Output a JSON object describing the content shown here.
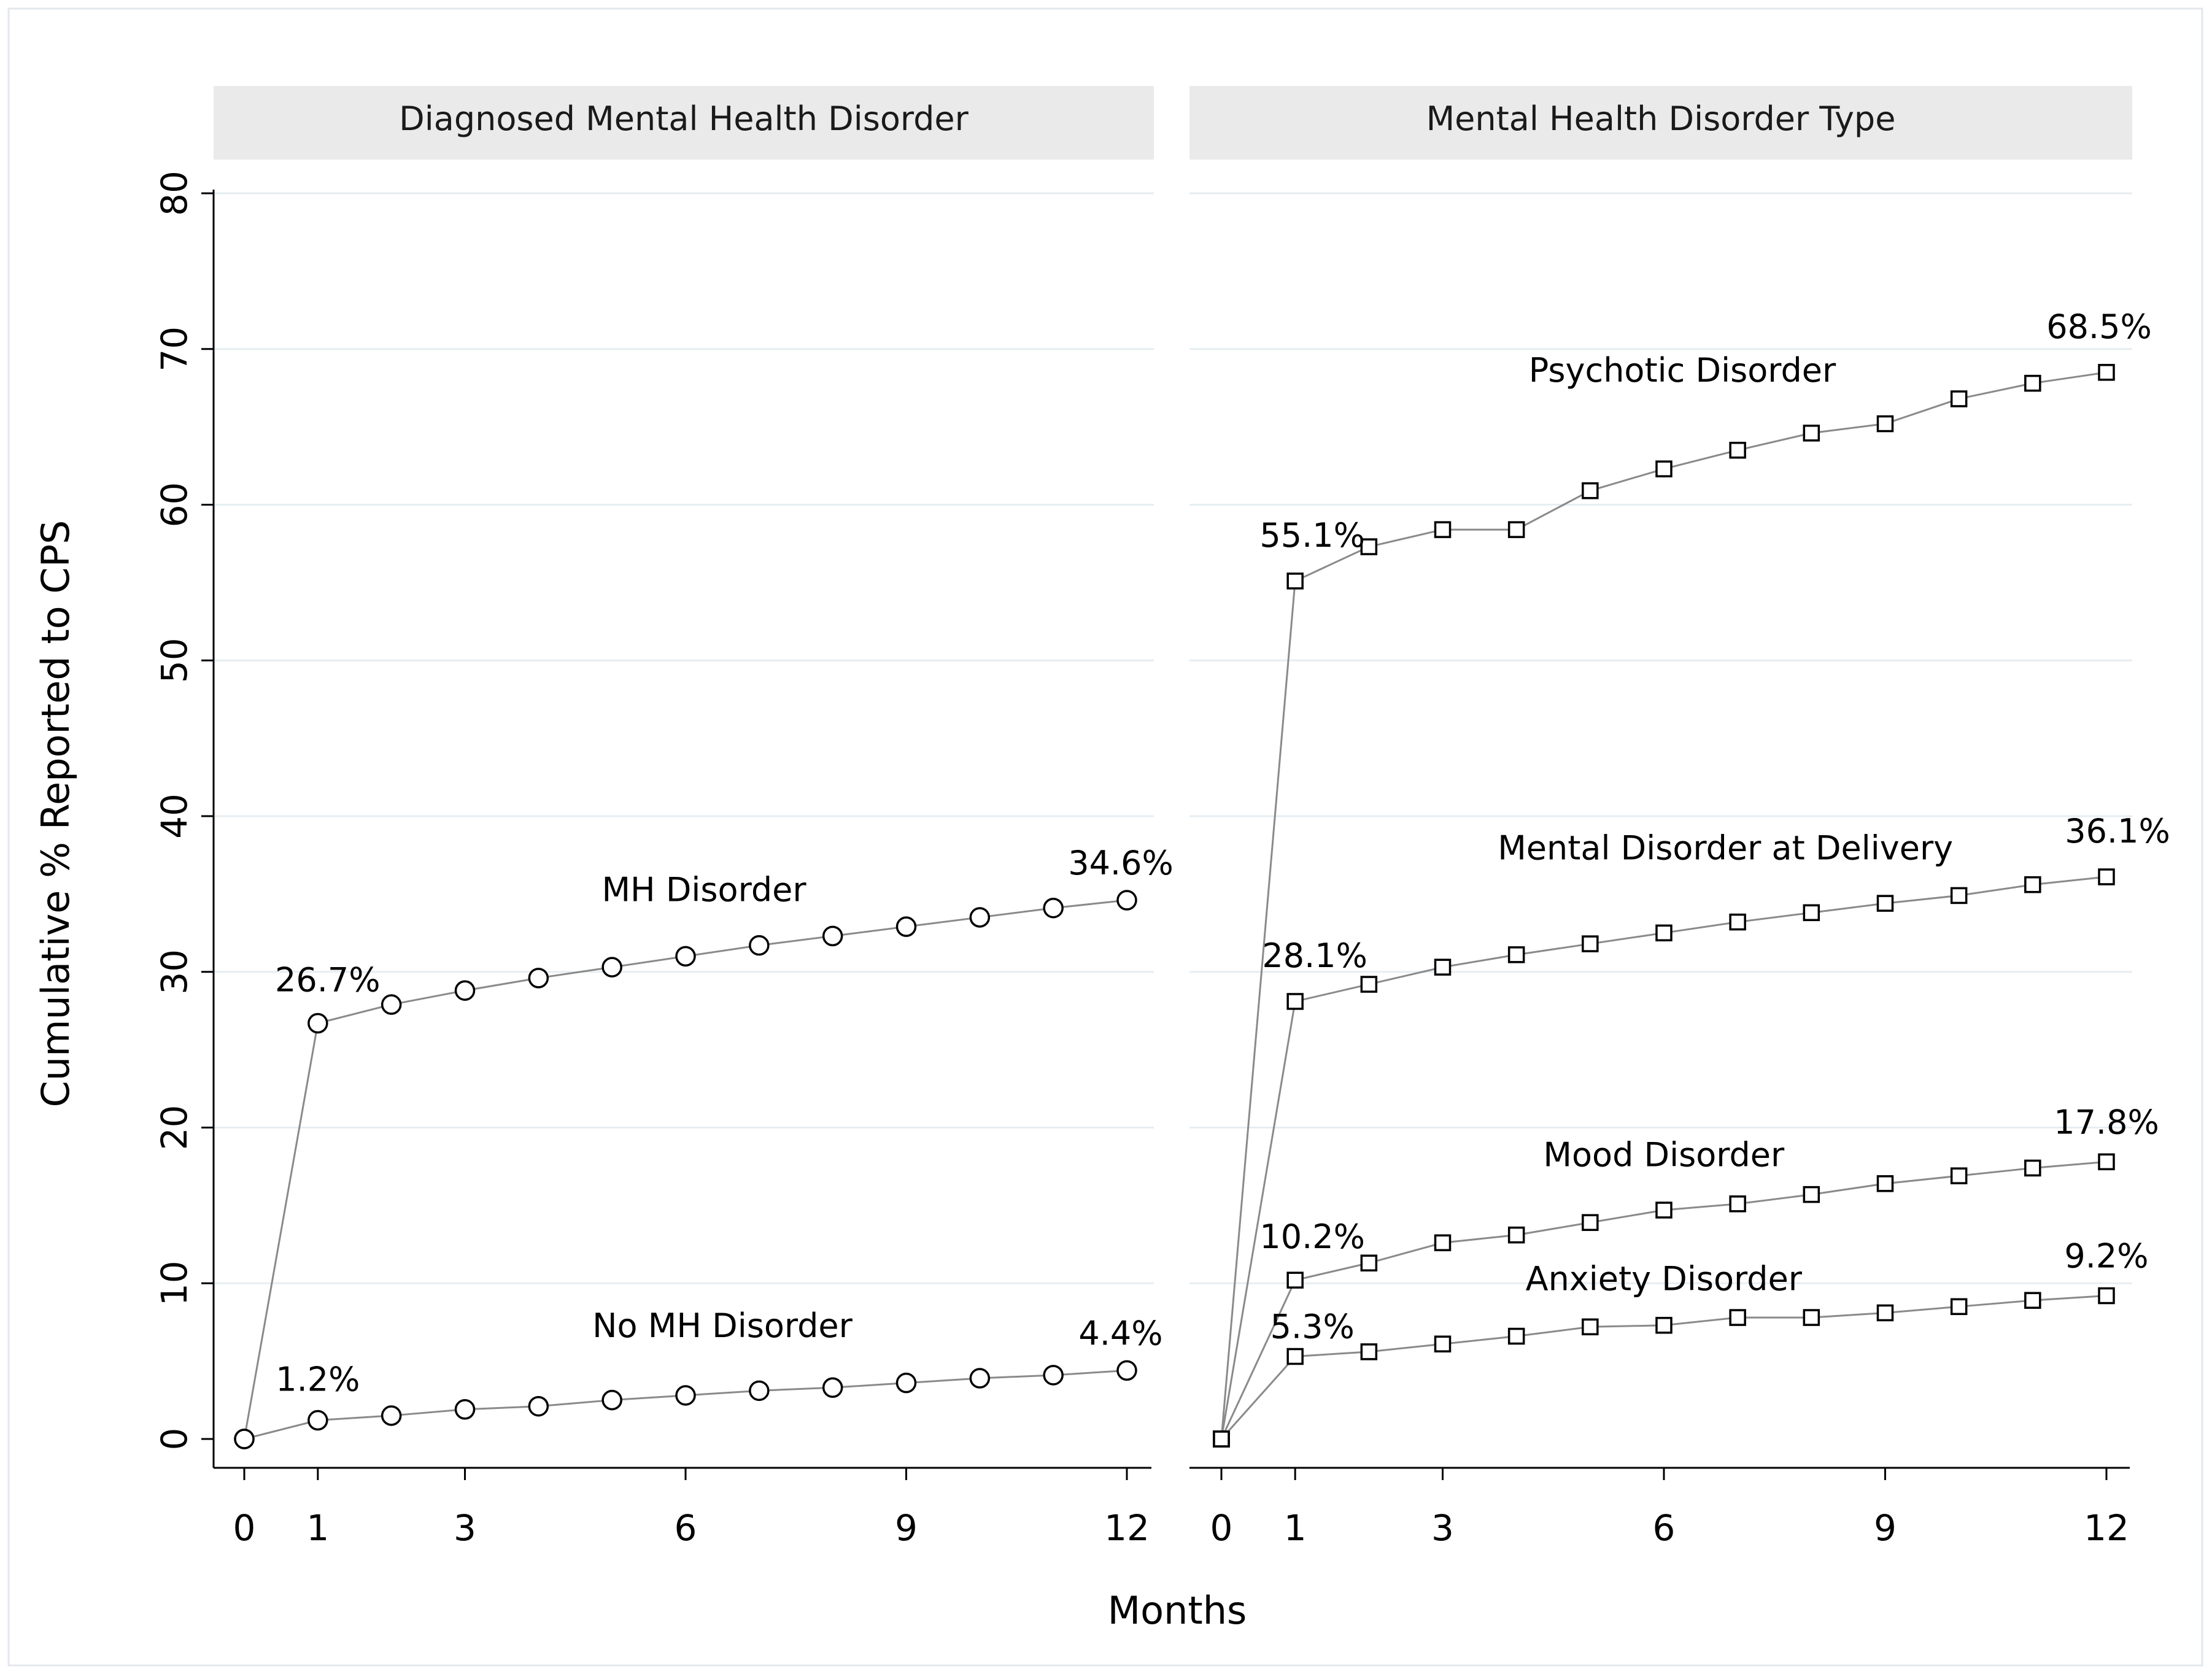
{
  "chart_data": {
    "type": "line",
    "xlabel": "Months",
    "ylabel": "Cumulative % Reported to CPS",
    "ylim": [
      0,
      80
    ],
    "yticks": [
      0,
      10,
      20,
      30,
      40,
      50,
      60,
      70,
      80
    ],
    "xticks": [
      0,
      1,
      3,
      6,
      9,
      12
    ],
    "xlim": [
      0,
      12
    ],
    "grid": true,
    "colors": {
      "line": "#8a8a8a",
      "marker_stroke": "#000000",
      "grid": "#e6eef2",
      "strip": "#eaeaea"
    },
    "panels": [
      {
        "title": "Diagnosed Mental Health Disorder",
        "marker": "circle",
        "series": [
          {
            "name": "MH Disorder",
            "x": [
              0,
              1,
              2,
              3,
              4,
              5,
              6,
              7,
              8,
              9,
              10,
              11,
              12
            ],
            "values": [
              0,
              26.7,
              27.9,
              28.8,
              29.6,
              30.3,
              31.0,
              31.7,
              32.3,
              32.9,
              33.5,
              34.1,
              34.6
            ],
            "start_label": "26.7%",
            "end_label": "34.6%"
          },
          {
            "name": "No MH Disorder",
            "x": [
              0,
              1,
              2,
              3,
              4,
              5,
              6,
              7,
              8,
              9,
              10,
              11,
              12
            ],
            "values": [
              0,
              1.2,
              1.5,
              1.9,
              2.1,
              2.5,
              2.8,
              3.1,
              3.3,
              3.6,
              3.9,
              4.1,
              4.4
            ],
            "start_label": "1.2%",
            "end_label": "4.4%"
          }
        ]
      },
      {
        "title": "Mental Health Disorder Type",
        "marker": "square",
        "series": [
          {
            "name": "Psychotic Disorder",
            "x": [
              0,
              1,
              2,
              3,
              4,
              5,
              6,
              7,
              8,
              9,
              10,
              11,
              12
            ],
            "values": [
              0,
              55.1,
              57.3,
              58.4,
              58.4,
              60.9,
              62.3,
              63.5,
              64.6,
              65.2,
              66.8,
              67.8,
              68.5
            ],
            "start_label": "55.1%",
            "end_label": "68.5%"
          },
          {
            "name": "Mental Disorder at Delivery",
            "x": [
              0,
              1,
              2,
              3,
              4,
              5,
              6,
              7,
              8,
              9,
              10,
              11,
              12
            ],
            "values": [
              0,
              28.1,
              29.2,
              30.3,
              31.1,
              31.8,
              32.5,
              33.2,
              33.8,
              34.4,
              34.9,
              35.6,
              36.1
            ],
            "start_label": "28.1%",
            "end_label": "36.1%"
          },
          {
            "name": "Mood Disorder",
            "x": [
              0,
              1,
              2,
              3,
              4,
              5,
              6,
              7,
              8,
              9,
              10,
              11,
              12
            ],
            "values": [
              0,
              10.2,
              11.3,
              12.6,
              13.1,
              13.9,
              14.7,
              15.1,
              15.7,
              16.4,
              16.9,
              17.4,
              17.8
            ],
            "start_label": "10.2%",
            "end_label": "17.8%"
          },
          {
            "name": "Anxiety Disorder",
            "x": [
              0,
              1,
              2,
              3,
              4,
              5,
              6,
              7,
              8,
              9,
              10,
              11,
              12
            ],
            "values": [
              0,
              5.3,
              5.6,
              6.1,
              6.6,
              7.2,
              7.3,
              7.8,
              7.8,
              8.1,
              8.5,
              8.9,
              9.2
            ],
            "start_label": "5.3%",
            "end_label": "9.2%"
          }
        ]
      }
    ]
  }
}
